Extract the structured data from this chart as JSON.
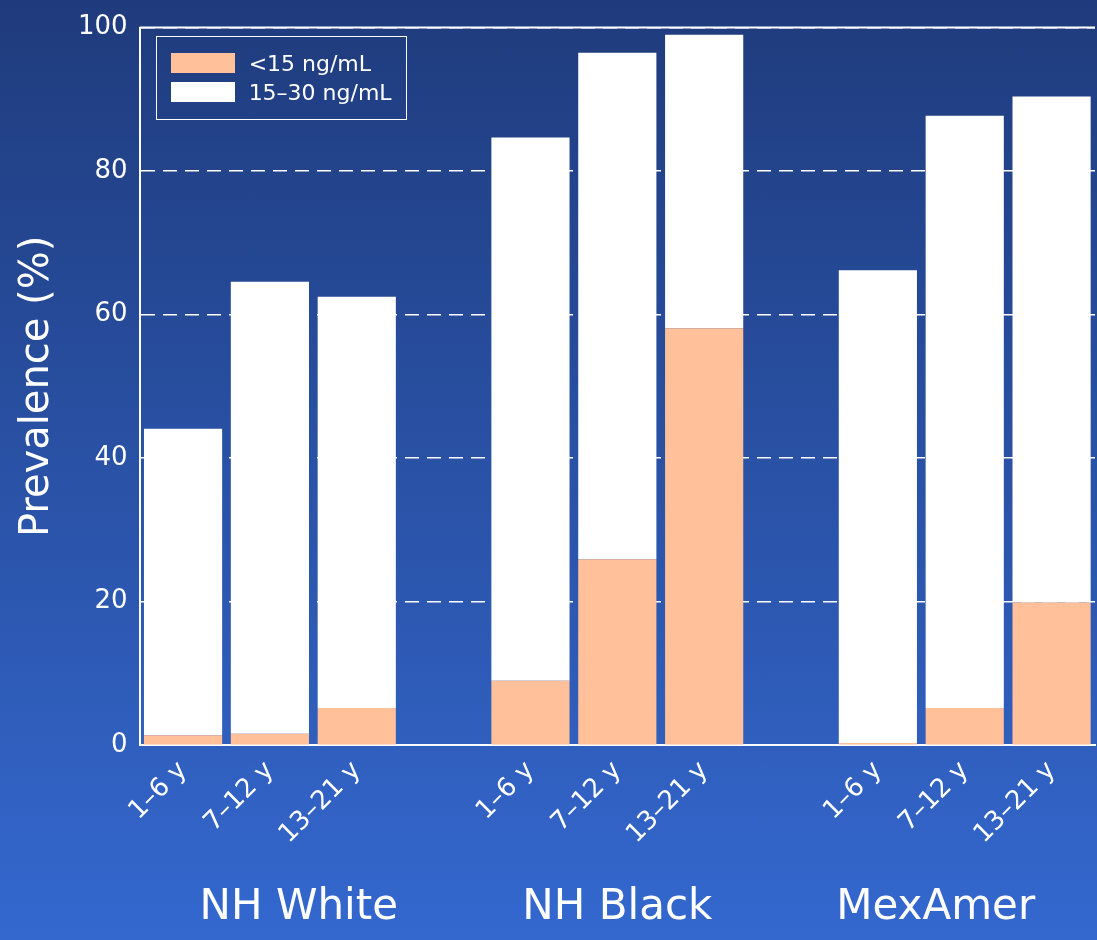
{
  "chart_data": {
    "type": "bar",
    "ylabel": "Prevalence (%)",
    "categories": [
      "1–6 y",
      "7–12 y",
      "13–21 y",
      null,
      "1–6 y",
      "7–12 y",
      "13–21 y",
      null,
      "1–6 y",
      "7–12 y",
      "13–21 y"
    ],
    "series": [
      {
        "name": "<15 ng/mL",
        "color": "#ffc09a",
        "values": [
          1.4,
          1.6,
          5.2,
          null,
          9,
          25.9,
          58.1,
          null,
          0.3,
          5.2,
          19.9
        ]
      },
      {
        "name": "15–30 ng/mL",
        "color": "#ffffff",
        "values": [
          42.7,
          63,
          57.3,
          null,
          75.7,
          70.6,
          40.9,
          null,
          65.9,
          82.5,
          70.5
        ]
      }
    ],
    "stacked": true,
    "ylim": [
      0,
      100
    ],
    "yticks": [
      0,
      20,
      40,
      60,
      80,
      100
    ],
    "grid": "y",
    "legend": "top left",
    "annotations": [
      "NH White",
      "NH Black",
      "MexAmer"
    ]
  }
}
